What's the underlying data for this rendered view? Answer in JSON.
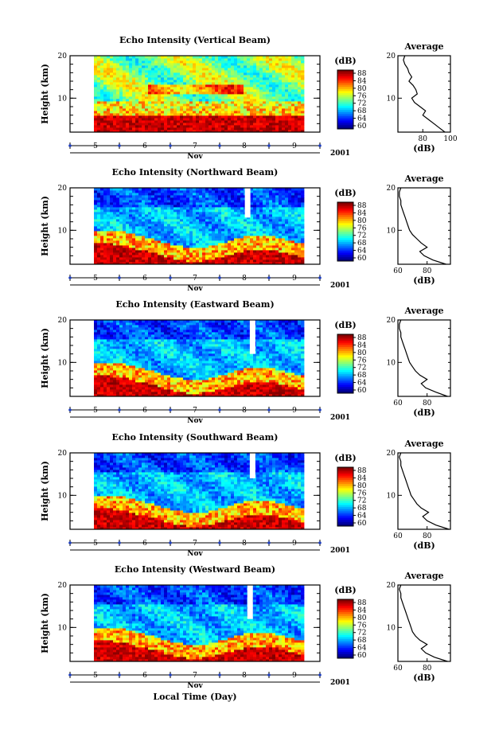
{
  "figure": {
    "xlabel": "Local Time (Day)",
    "month_label": "Nov",
    "year_label": "2001",
    "colorbar_unit": "(dB)",
    "avg_title": "Average",
    "avg_xlabel": "(dB)"
  },
  "chart_data": [
    {
      "type": "heatmap",
      "title": "Echo Intensity (Vertical Beam)",
      "ylabel": "Height (km)",
      "ylim": [
        2,
        20
      ],
      "yticks": [
        "20",
        "10"
      ],
      "x_days": [
        "5",
        "6",
        "7",
        "8",
        "9"
      ],
      "colorbar_ticks": [
        "88",
        "84",
        "80",
        "76",
        "72",
        "68",
        "64",
        "60"
      ],
      "colorbar_range": [
        60,
        88
      ],
      "grid": false,
      "average_profile": {
        "title": "Average",
        "xlabel": "(dB)",
        "xticks": [
          "80",
          "100"
        ],
        "xlim": [
          62,
          100
        ],
        "height": [
          2,
          3,
          4,
          5,
          6,
          7,
          8,
          9,
          10,
          11,
          12,
          13,
          14,
          15,
          16,
          17,
          18,
          19,
          20
        ],
        "values": [
          96,
          92,
          88,
          84,
          80,
          82,
          78,
          74,
          72,
          76,
          75,
          73,
          70,
          72,
          70,
          69,
          67,
          66,
          67
        ]
      },
      "gaps": []
    },
    {
      "type": "heatmap",
      "title": "Echo Intensity (Northward Beam)",
      "ylabel": "Height (km)",
      "ylim": [
        2,
        20
      ],
      "yticks": [
        "20",
        "10"
      ],
      "x_days": [
        "5",
        "6",
        "7",
        "8",
        "9"
      ],
      "colorbar_ticks": [
        "88",
        "84",
        "80",
        "76",
        "72",
        "68",
        "64",
        "60"
      ],
      "colorbar_range": [
        60,
        88
      ],
      "grid": false,
      "average_profile": {
        "title": "Average",
        "xlabel": "(dB)",
        "xticks": [
          "60",
          "80"
        ],
        "xlim": [
          60,
          96
        ],
        "height": [
          2,
          3,
          4,
          5,
          6,
          7,
          8,
          9,
          10,
          11,
          12,
          13,
          14,
          15,
          16,
          17,
          18,
          19,
          20
        ],
        "values": [
          93,
          84,
          78,
          75,
          80,
          76,
          73,
          70,
          68,
          67,
          66,
          65,
          64,
          63,
          62,
          62,
          61,
          61,
          62
        ]
      },
      "gaps": [
        {
          "day": 8.05,
          "from": 13,
          "to": 20
        }
      ]
    },
    {
      "type": "heatmap",
      "title": "Echo Intensity (Eastward Beam)",
      "ylabel": "Height (km)",
      "ylim": [
        2,
        20
      ],
      "yticks": [
        "20",
        "10"
      ],
      "x_days": [
        "5",
        "6",
        "7",
        "8",
        "9"
      ],
      "colorbar_ticks": [
        "88",
        "84",
        "80",
        "76",
        "72",
        "68",
        "64",
        "60"
      ],
      "colorbar_range": [
        60,
        88
      ],
      "grid": false,
      "average_profile": {
        "title": "Average",
        "xlabel": "(dB)",
        "xticks": [
          "60",
          "80"
        ],
        "xlim": [
          60,
          96
        ],
        "height": [
          2,
          3,
          4,
          5,
          6,
          7,
          8,
          9,
          10,
          11,
          12,
          13,
          14,
          15,
          16,
          17,
          18,
          19,
          20
        ],
        "values": [
          94,
          86,
          79,
          76,
          80,
          75,
          72,
          70,
          68,
          67,
          66,
          65,
          64,
          63,
          62,
          62,
          61,
          61,
          62
        ]
      },
      "gaps": [
        {
          "day": 8.15,
          "from": 12,
          "to": 20
        }
      ]
    },
    {
      "type": "heatmap",
      "title": "Echo Intensity (Southward Beam)",
      "ylabel": "Height (km)",
      "ylim": [
        2,
        20
      ],
      "yticks": [
        "20",
        "10"
      ],
      "x_days": [
        "5",
        "6",
        "7",
        "8",
        "9"
      ],
      "colorbar_ticks": [
        "88",
        "84",
        "80",
        "76",
        "72",
        "68",
        "64",
        "60"
      ],
      "colorbar_range": [
        60,
        88
      ],
      "grid": false,
      "average_profile": {
        "title": "Average",
        "xlabel": "(dB)",
        "xticks": [
          "60",
          "80"
        ],
        "xlim": [
          60,
          96
        ],
        "height": [
          2,
          3,
          4,
          5,
          6,
          7,
          8,
          9,
          10,
          11,
          12,
          13,
          14,
          15,
          16,
          17,
          18,
          19,
          20
        ],
        "values": [
          95,
          86,
          80,
          77,
          81,
          76,
          73,
          71,
          69,
          68,
          67,
          66,
          65,
          64,
          63,
          62,
          62,
          61,
          62
        ]
      },
      "gaps": [
        {
          "day": 8.15,
          "from": 14,
          "to": 20
        }
      ]
    },
    {
      "type": "heatmap",
      "title": "Echo Intensity (Westward Beam)",
      "ylabel": "Height (km)",
      "ylim": [
        2,
        20
      ],
      "yticks": [
        "20",
        "10"
      ],
      "x_days": [
        "5",
        "6",
        "7",
        "8",
        "9"
      ],
      "colorbar_ticks": [
        "88",
        "84",
        "80",
        "76",
        "72",
        "68",
        "64",
        "60"
      ],
      "colorbar_range": [
        60,
        88
      ],
      "grid": false,
      "average_profile": {
        "title": "Average",
        "xlabel": "(dB)",
        "xticks": [
          "60",
          "80"
        ],
        "xlim": [
          60,
          96
        ],
        "height": [
          2,
          3,
          4,
          5,
          6,
          7,
          8,
          9,
          10,
          11,
          12,
          13,
          14,
          15,
          16,
          17,
          18,
          19,
          20
        ],
        "values": [
          94,
          85,
          79,
          76,
          80,
          75,
          72,
          70,
          69,
          68,
          67,
          66,
          65,
          64,
          63,
          62,
          62,
          61,
          62
        ]
      },
      "gaps": [
        {
          "day": 8.1,
          "from": 12,
          "to": 20
        }
      ]
    }
  ]
}
